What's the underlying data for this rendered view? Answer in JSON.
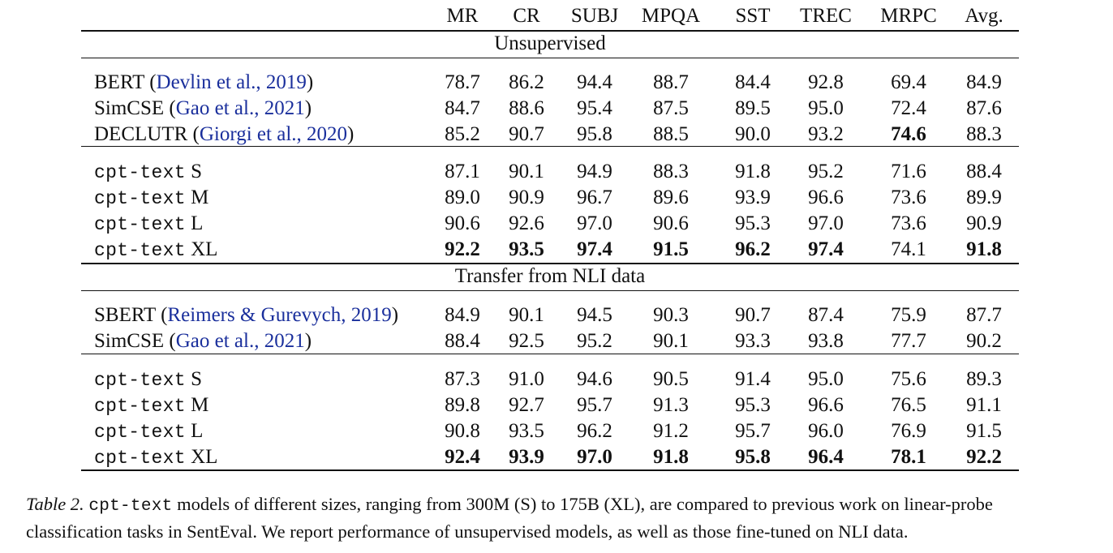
{
  "header": [
    "MR",
    "CR",
    "SUBJ",
    "MPQA",
    "SST",
    "TREC",
    "MRPC",
    "Avg."
  ],
  "sections": {
    "unsup": "Unsupervised",
    "nli": "Transfer from NLI data"
  },
  "rows": [
    {
      "name": "BERT",
      "cite": "Devlin et al., 2019",
      "mono": false,
      "values": [
        "78.7",
        "86.2",
        "94.4",
        "88.7",
        "84.4",
        "92.8",
        "69.4",
        "84.9"
      ],
      "bold": []
    },
    {
      "name": "SimCSE",
      "cite": "Gao et al., 2021",
      "mono": false,
      "values": [
        "84.7",
        "88.6",
        "95.4",
        "87.5",
        "89.5",
        "95.0",
        "72.4",
        "87.6"
      ],
      "bold": []
    },
    {
      "name": "DECLUTR",
      "cite": "Giorgi et al., 2020",
      "mono": false,
      "values": [
        "85.2",
        "90.7",
        "95.8",
        "88.5",
        "90.0",
        "93.2",
        "74.6",
        "88.3"
      ],
      "bold": [
        6
      ]
    },
    {
      "name": "cpt-text",
      "size": "S",
      "mono": true,
      "values": [
        "87.1",
        "90.1",
        "94.9",
        "88.3",
        "91.8",
        "95.2",
        "71.6",
        "88.4"
      ],
      "bold": []
    },
    {
      "name": "cpt-text",
      "size": "M",
      "mono": true,
      "values": [
        "89.0",
        "90.9",
        "96.7",
        "89.6",
        "93.9",
        "96.6",
        "73.6",
        "89.9"
      ],
      "bold": []
    },
    {
      "name": "cpt-text",
      "size": "L",
      "mono": true,
      "values": [
        "90.6",
        "92.6",
        "97.0",
        "90.6",
        "95.3",
        "97.0",
        "73.6",
        "90.9"
      ],
      "bold": []
    },
    {
      "name": "cpt-text",
      "size": "XL",
      "mono": true,
      "values": [
        "92.2",
        "93.5",
        "97.4",
        "91.5",
        "96.2",
        "97.4",
        "74.1",
        "91.8"
      ],
      "bold": [
        0,
        1,
        2,
        3,
        4,
        5,
        7
      ]
    },
    {
      "name": "SBERT",
      "cite": "Reimers & Gurevych, 2019",
      "mono": false,
      "values": [
        "84.9",
        "90.1",
        "94.5",
        "90.3",
        "90.7",
        "87.4",
        "75.9",
        "87.7"
      ],
      "bold": []
    },
    {
      "name": "SimCSE",
      "cite": "Gao et al., 2021",
      "mono": false,
      "values": [
        "88.4",
        "92.5",
        "95.2",
        "90.1",
        "93.3",
        "93.8",
        "77.7",
        "90.2"
      ],
      "bold": []
    },
    {
      "name": "cpt-text",
      "size": "S",
      "mono": true,
      "values": [
        "87.3",
        "91.0",
        "94.6",
        "90.5",
        "91.4",
        "95.0",
        "75.6",
        "89.3"
      ],
      "bold": []
    },
    {
      "name": "cpt-text",
      "size": "M",
      "mono": true,
      "values": [
        "89.8",
        "92.7",
        "95.7",
        "91.3",
        "95.3",
        "96.6",
        "76.5",
        "91.1"
      ],
      "bold": []
    },
    {
      "name": "cpt-text",
      "size": "L",
      "mono": true,
      "values": [
        "90.8",
        "93.5",
        "96.2",
        "91.2",
        "95.7",
        "96.0",
        "76.9",
        "91.5"
      ],
      "bold": []
    },
    {
      "name": "cpt-text",
      "size": "XL",
      "mono": true,
      "values": [
        "92.4",
        "93.9",
        "97.0",
        "91.8",
        "95.8",
        "96.4",
        "78.1",
        "92.2"
      ],
      "bold": [
        0,
        1,
        2,
        3,
        4,
        5,
        6,
        7
      ]
    }
  ],
  "caption": {
    "label": "Table 2.",
    "code": "cpt-text",
    "line1": " models of different sizes, ranging from 300M (S) to 175B (XL), are compared to previous work on linear-probe",
    "line2": "classification tasks in SentEval. We report performance of unsupervised models, as well as those fine-tuned on NLI data."
  }
}
